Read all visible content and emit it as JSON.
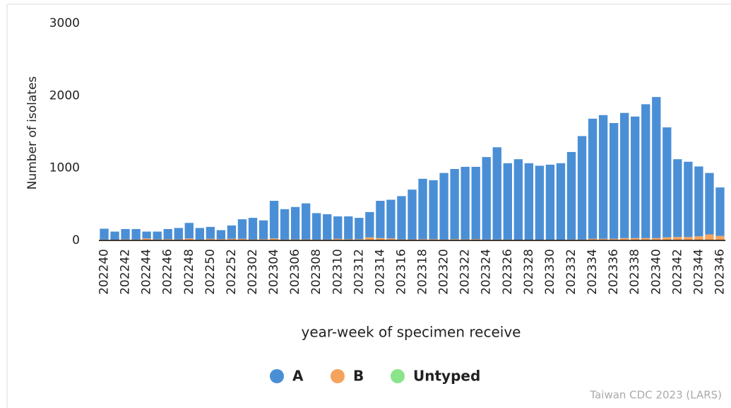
{
  "chart_data": {
    "type": "stacked_bar",
    "y_label": "Number of isolates",
    "x_label": "year-week of specimen receive",
    "source": "Taiwan CDC 2023 (LARS)",
    "categories": [
      "202240",
      null,
      "202242",
      null,
      "202244",
      null,
      "202246",
      null,
      "202248",
      null,
      "202250",
      null,
      "202252",
      null,
      "202302",
      null,
      "202304",
      null,
      "202306",
      null,
      "202308",
      null,
      "202310",
      null,
      "202312",
      null,
      "202314",
      null,
      "202316",
      null,
      "202318",
      null,
      "202320",
      null,
      "202322",
      null,
      "202324",
      null,
      "202326",
      null,
      "202328",
      null,
      "202330",
      null,
      "202332",
      null,
      "202334",
      null,
      "202336",
      null,
      "202338",
      null,
      "202340",
      null,
      "202342",
      null,
      "202344",
      null,
      "202346"
    ],
    "series": [
      {
        "name": "A",
        "color": "#4a8fd6",
        "values": [
          150,
          112,
          143,
          145,
          95,
          108,
          140,
          158,
          215,
          160,
          165,
          125,
          185,
          270,
          298,
          260,
          520,
          420,
          448,
          498,
          365,
          350,
          310,
          315,
          295,
          350,
          515,
          535,
          598,
          688,
          835,
          815,
          920,
          970,
          1003,
          1000,
          1140,
          1275,
          1055,
          1112,
          1057,
          1022,
          1037,
          1057,
          1210,
          1430,
          1660,
          1710,
          1600,
          1730,
          1680,
          1850,
          1950,
          1520,
          1075,
          1040,
          965,
          850,
          670
        ]
      },
      {
        "name": "B",
        "color": "#f5a25d",
        "values": [
          10,
          8,
          12,
          10,
          25,
          12,
          15,
          12,
          25,
          10,
          20,
          15,
          20,
          20,
          12,
          15,
          25,
          10,
          12,
          12,
          10,
          10,
          20,
          15,
          15,
          40,
          30,
          25,
          12,
          12,
          15,
          15,
          10,
          15,
          12,
          15,
          10,
          10,
          10,
          8,
          8,
          8,
          8,
          8,
          10,
          10,
          20,
          20,
          20,
          30,
          30,
          30,
          30,
          40,
          45,
          45,
          55,
          80,
          60
        ]
      },
      {
        "name": "Untyped",
        "color": "#8be38a",
        "values": [
          2,
          2,
          2,
          2,
          2,
          2,
          2,
          2,
          2,
          2,
          2,
          2,
          2,
          2,
          2,
          2,
          2,
          2,
          2,
          2,
          2,
          2,
          2,
          2,
          2,
          2,
          2,
          2,
          2,
          2,
          2,
          2,
          2,
          2,
          2,
          2,
          2,
          2,
          2,
          2,
          2,
          2,
          2,
          2,
          2,
          2,
          2,
          2,
          2,
          2,
          2,
          2,
          2,
          2,
          2,
          2,
          2,
          2,
          2
        ]
      }
    ],
    "ylim": [
      0,
      3000
    ],
    "yticks": [
      0,
      1000,
      2000,
      3000
    ]
  }
}
